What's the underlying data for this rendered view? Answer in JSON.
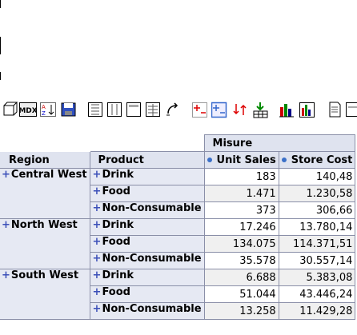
{
  "toolbar": {
    "buttons": [
      {
        "name": "cube-icon"
      },
      {
        "name": "mdx-icon",
        "label": "MDX"
      },
      {
        "name": "sort-az-icon"
      },
      {
        "name": "save-icon"
      },
      {
        "name": "cols-icon"
      },
      {
        "name": "rows-icon"
      },
      {
        "name": "table-icon"
      },
      {
        "name": "table-props-icon"
      },
      {
        "name": "swap-axes-icon"
      },
      {
        "name": "expand-icon"
      },
      {
        "name": "collapse-icon"
      },
      {
        "name": "drill-icon"
      },
      {
        "name": "drill-through-icon"
      },
      {
        "name": "chart-icon"
      },
      {
        "name": "chart-props-icon"
      },
      {
        "name": "print-icon"
      },
      {
        "name": "export-icon"
      }
    ]
  },
  "pivot": {
    "measures_label": "Misure",
    "headers": {
      "region": "Region",
      "product": "Product",
      "unit_sales": "Unit Sales",
      "store_cost": "Store Cost"
    },
    "expand_symbol": "+",
    "regions": [
      {
        "name": "Central West",
        "rows": [
          {
            "product": "Drink",
            "unit_sales": "183",
            "store_cost": "140,48"
          },
          {
            "product": "Food",
            "unit_sales": "1.471",
            "store_cost": "1.230,58"
          },
          {
            "product": "Non-Consumable",
            "unit_sales": "373",
            "store_cost": "306,66"
          }
        ]
      },
      {
        "name": "North West",
        "rows": [
          {
            "product": "Drink",
            "unit_sales": "17.246",
            "store_cost": "13.780,14"
          },
          {
            "product": "Food",
            "unit_sales": "134.075",
            "store_cost": "114.371,51"
          },
          {
            "product": "Non-Consumable",
            "unit_sales": "35.578",
            "store_cost": "30.557,14"
          }
        ]
      },
      {
        "name": "South West",
        "rows": [
          {
            "product": "Drink",
            "unit_sales": "6.688",
            "store_cost": "5.383,08"
          },
          {
            "product": "Food",
            "unit_sales": "51.044",
            "store_cost": "43.446,24"
          },
          {
            "product": "Non-Consumable",
            "unit_sales": "13.258",
            "store_cost": "11.429,28"
          }
        ]
      }
    ]
  }
}
